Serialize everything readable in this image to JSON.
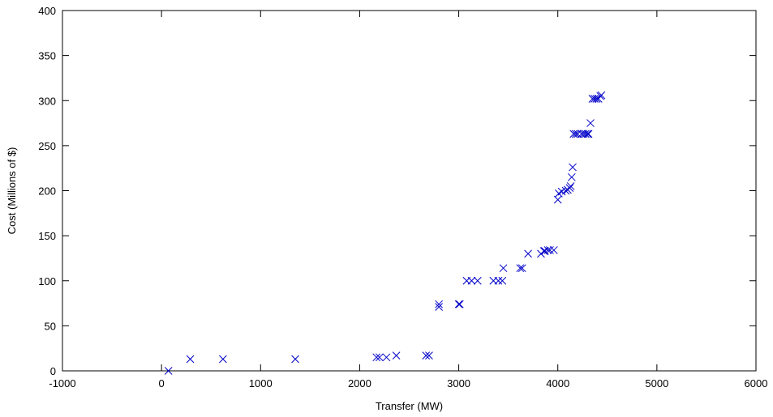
{
  "chart_data": {
    "type": "scatter",
    "xlabel": "Transfer (MW)",
    "ylabel": "Cost (Millions of $)",
    "xlim": [
      -1000,
      6000
    ],
    "ylim": [
      0,
      400
    ],
    "xticks": [
      -1000,
      0,
      1000,
      2000,
      3000,
      4000,
      5000,
      6000
    ],
    "yticks": [
      0,
      50,
      100,
      150,
      200,
      250,
      300,
      350,
      400
    ],
    "grid": false,
    "legend": "none",
    "marker": "x",
    "color": "#0000c8",
    "series": [
      {
        "points": [
          [
            70,
            0
          ],
          [
            290,
            13
          ],
          [
            620,
            13
          ],
          [
            1350,
            13
          ],
          [
            2170,
            15
          ],
          [
            2200,
            15
          ],
          [
            2270,
            15
          ],
          [
            2370,
            17
          ],
          [
            2670,
            17
          ],
          [
            2700,
            17
          ],
          [
            2800,
            71
          ],
          [
            2800,
            74
          ],
          [
            3000,
            74
          ],
          [
            3010,
            74
          ],
          [
            3080,
            100
          ],
          [
            3130,
            100
          ],
          [
            3190,
            100
          ],
          [
            3350,
            100
          ],
          [
            3400,
            100
          ],
          [
            3440,
            100
          ],
          [
            3450,
            114
          ],
          [
            3620,
            114
          ],
          [
            3640,
            114
          ],
          [
            3700,
            130
          ],
          [
            3830,
            130
          ],
          [
            3860,
            133
          ],
          [
            3870,
            133
          ],
          [
            3900,
            134
          ],
          [
            3920,
            134
          ],
          [
            3960,
            134
          ],
          [
            4000,
            190
          ],
          [
            4010,
            197
          ],
          [
            4040,
            199
          ],
          [
            4080,
            200
          ],
          [
            4100,
            201
          ],
          [
            4120,
            203
          ],
          [
            4130,
            205
          ],
          [
            4140,
            215
          ],
          [
            4150,
            226
          ],
          [
            4160,
            263
          ],
          [
            4180,
            263
          ],
          [
            4200,
            263
          ],
          [
            4240,
            263
          ],
          [
            4260,
            263
          ],
          [
            4280,
            263
          ],
          [
            4300,
            263
          ],
          [
            4310,
            263
          ],
          [
            4330,
            275
          ],
          [
            4350,
            302
          ],
          [
            4370,
            302
          ],
          [
            4390,
            302
          ],
          [
            4410,
            302
          ],
          [
            4430,
            305
          ],
          [
            4440,
            306
          ]
        ]
      }
    ]
  }
}
